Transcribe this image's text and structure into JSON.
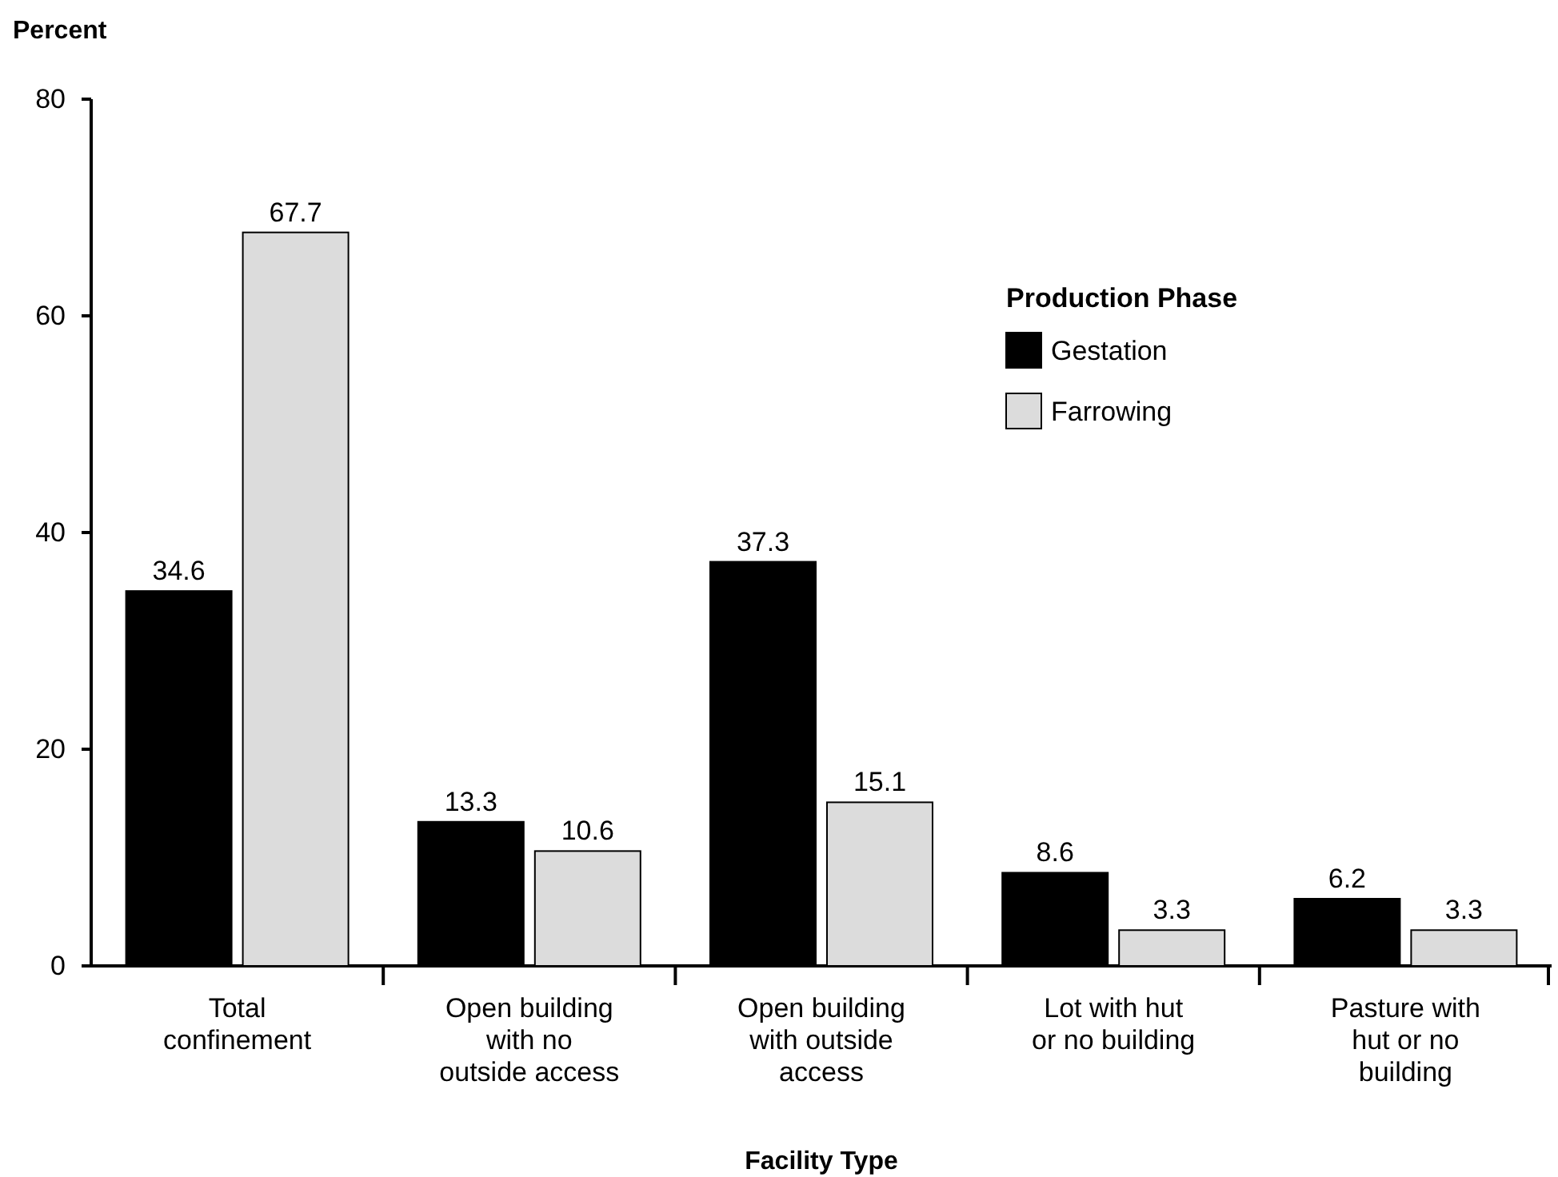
{
  "chart_data": {
    "type": "bar",
    "xlabel": "Facility Type",
    "ylabel": "Percent",
    "legend_title": "Production Phase",
    "categories": [
      "Total\nconfinement",
      "Open building\nwith no\noutside access",
      "Open building\nwith outside\naccess",
      "Lot with hut\nor no building",
      "Pasture with\nhut or no\nbuilding"
    ],
    "series": [
      {
        "name": "Gestation",
        "color": "#000000",
        "values": [
          34.6,
          13.3,
          37.3,
          8.6,
          6.2
        ]
      },
      {
        "name": "Farrowing",
        "color": "#dcdcdc",
        "values": [
          67.7,
          10.6,
          15.1,
          3.3,
          3.3
        ]
      }
    ],
    "ylim": [
      0,
      80
    ],
    "yticks": [
      0,
      20,
      40,
      60,
      80
    ],
    "data_labels": true,
    "legend": "top right",
    "grid": false
  }
}
